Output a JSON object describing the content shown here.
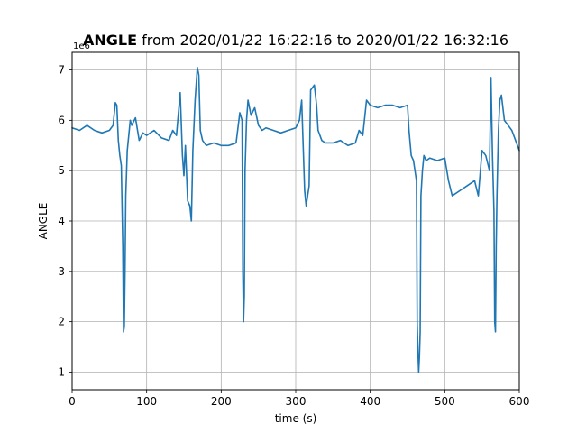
{
  "chart_data": {
    "type": "line",
    "title_bold": "ANGLE",
    "title_rest": " from 2020/01/22 16:22:16 to 2020/01/22 16:32:16",
    "xlabel": "time (s)",
    "ylabel": "ANGLE",
    "offset_label": "1e6",
    "xlim": [
      0,
      600
    ],
    "ylim": [
      0.65,
      7.35
    ],
    "xticks": [
      0,
      100,
      200,
      300,
      400,
      500,
      600
    ],
    "xtick_labels": [
      "0",
      "100",
      "200",
      "300",
      "400",
      "500",
      "600"
    ],
    "yticks": [
      1,
      2,
      3,
      4,
      5,
      6,
      7
    ],
    "ytick_labels": [
      "1",
      "2",
      "3",
      "4",
      "5",
      "6",
      "7"
    ],
    "grid": true,
    "line_color": "#1f77b4",
    "series": [
      {
        "x": [
          0,
          10,
          20,
          30,
          40,
          50,
          55,
          58,
          60,
          62,
          64,
          66,
          68,
          69,
          70,
          71,
          72,
          74,
          76,
          78,
          80,
          85,
          90,
          95,
          100,
          110,
          120,
          130,
          135,
          140,
          145,
          148,
          150,
          152,
          155,
          158,
          160,
          162,
          165,
          168,
          170,
          172,
          175,
          180,
          190,
          200,
          210,
          220,
          225,
          228,
          229,
          230,
          231,
          232,
          234,
          236,
          240,
          245,
          250,
          255,
          260,
          270,
          280,
          290,
          300,
          305,
          308,
          310,
          312,
          314,
          316,
          318,
          320,
          325,
          328,
          330,
          335,
          340,
          350,
          360,
          370,
          380,
          385,
          390,
          395,
          400,
          410,
          420,
          430,
          440,
          450,
          452,
          455,
          458,
          460,
          462,
          463,
          464,
          465,
          466,
          467,
          468,
          470,
          472,
          475,
          480,
          490,
          500,
          505,
          510,
          520,
          530,
          540,
          545,
          550,
          555,
          560,
          562,
          564,
          566,
          567,
          568,
          569,
          570,
          572,
          574,
          576,
          580,
          585,
          590,
          595,
          600
        ],
        "y": [
          5.85,
          5.8,
          5.9,
          5.8,
          5.75,
          5.8,
          5.9,
          6.35,
          6.3,
          5.6,
          5.3,
          5.1,
          3.5,
          1.8,
          1.9,
          3.0,
          4.5,
          5.4,
          5.7,
          6.0,
          5.9,
          6.05,
          5.6,
          5.75,
          5.7,
          5.8,
          5.65,
          5.6,
          5.8,
          5.7,
          6.55,
          5.3,
          4.9,
          5.5,
          4.4,
          4.3,
          4.0,
          5.4,
          6.4,
          7.05,
          6.9,
          5.8,
          5.6,
          5.5,
          5.55,
          5.5,
          5.5,
          5.55,
          6.15,
          6.0,
          3.0,
          2.0,
          2.5,
          5.0,
          6.0,
          6.4,
          6.1,
          6.25,
          5.9,
          5.8,
          5.85,
          5.8,
          5.75,
          5.8,
          5.85,
          6.0,
          6.4,
          5.5,
          4.6,
          4.3,
          4.5,
          4.7,
          6.6,
          6.7,
          6.3,
          5.8,
          5.6,
          5.55,
          5.55,
          5.6,
          5.5,
          5.55,
          5.8,
          5.7,
          6.4,
          6.3,
          6.25,
          6.3,
          6.3,
          6.25,
          6.3,
          5.8,
          5.3,
          5.2,
          5.0,
          4.8,
          2.0,
          1.4,
          1.0,
          1.3,
          1.8,
          4.5,
          5.0,
          5.3,
          5.2,
          5.25,
          5.2,
          5.25,
          4.8,
          4.5,
          4.6,
          4.7,
          4.8,
          4.5,
          5.4,
          5.3,
          5.0,
          6.85,
          5.3,
          4.2,
          2.0,
          1.8,
          3.5,
          4.5,
          5.8,
          6.4,
          6.5,
          6.0,
          5.9,
          5.8,
          5.6,
          5.4
        ]
      }
    ]
  }
}
